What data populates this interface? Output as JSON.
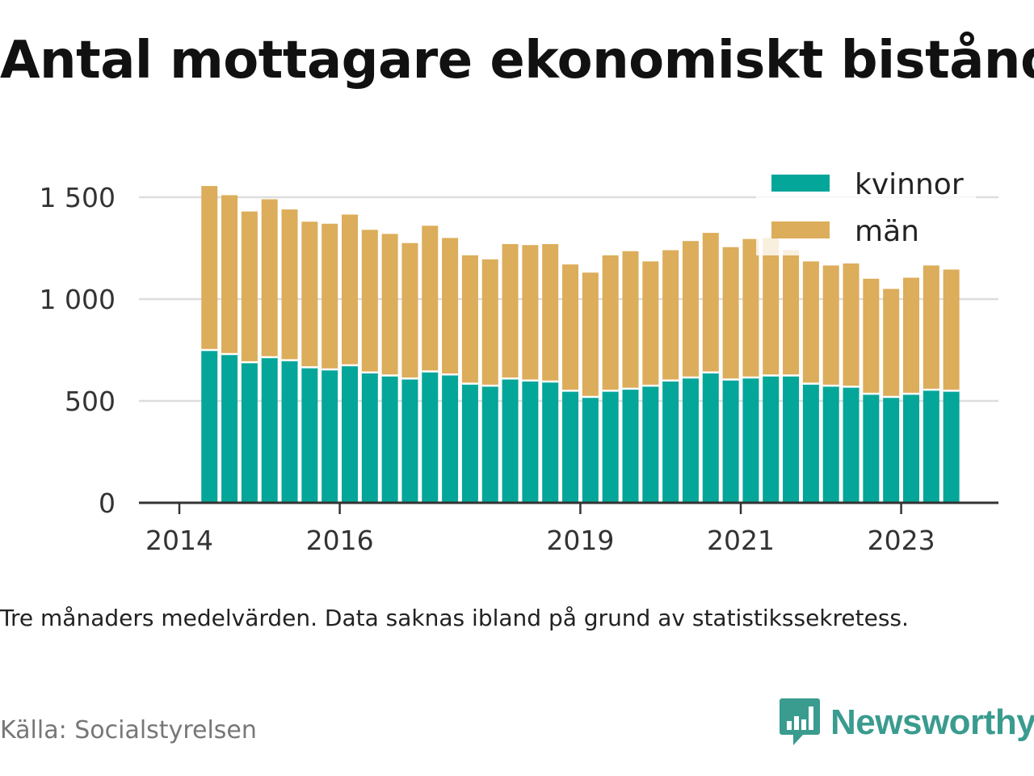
{
  "title": "Antal mottagare ekonomiskt bistånd",
  "note": "Tre månaders medelvärden. Data saknas ibland på grund av statistikssekretess.",
  "source": "Källa: Socialstyrelsen",
  "brand": {
    "name": "Newsworthy",
    "icon": "newsworthy-logo-icon",
    "color": "#3a9b8f"
  },
  "colors": {
    "kvinnor": "#04a699",
    "man": "#dcad5a",
    "grid": "#dddddd",
    "axis": "#333333"
  },
  "chart_data": {
    "type": "bar",
    "stacked": true,
    "title": "Antal mottagare ekonomiskt bistånd",
    "xlabel": "",
    "ylabel": "",
    "ylim": [
      0,
      1750
    ],
    "yticks": [
      0,
      500,
      1000,
      1500
    ],
    "ytick_labels": [
      "0",
      "500",
      "1 000",
      "1 500"
    ],
    "xlim": [
      2014.0,
      2024.6
    ],
    "xticks": [
      2014,
      2016,
      2019,
      2021,
      2023
    ],
    "xtick_labels": [
      "2014",
      "2016",
      "2019",
      "2021",
      "2023"
    ],
    "grid": true,
    "legend_position": "top-right",
    "x": [
      2014.375,
      2014.625,
      2014.875,
      2015.125,
      2015.375,
      2015.625,
      2015.875,
      2016.125,
      2016.375,
      2016.625,
      2016.875,
      2017.125,
      2017.375,
      2017.625,
      2017.875,
      2018.125,
      2018.375,
      2018.625,
      2018.875,
      2019.125,
      2019.375,
      2019.625,
      2019.875,
      2020.125,
      2020.375,
      2020.625,
      2020.875,
      2021.125,
      2021.375,
      2021.625,
      2021.875,
      2022.125,
      2022.375,
      2022.625,
      2022.875,
      2023.125,
      2023.375,
      2023.625
    ],
    "series": [
      {
        "name": "kvinnor",
        "color": "#04a699",
        "values": [
          750,
          730,
          690,
          715,
          700,
          665,
          655,
          675,
          640,
          625,
          610,
          645,
          630,
          585,
          575,
          610,
          600,
          595,
          550,
          520,
          550,
          560,
          575,
          600,
          615,
          640,
          605,
          615,
          625,
          625,
          585,
          575,
          570,
          535,
          520,
          535,
          555,
          550
        ]
      },
      {
        "name": "män",
        "color": "#dcad5a",
        "values": [
          805,
          780,
          740,
          775,
          740,
          715,
          715,
          740,
          700,
          695,
          665,
          715,
          670,
          630,
          620,
          660,
          665,
          675,
          620,
          610,
          665,
          675,
          610,
          640,
          670,
          685,
          650,
          680,
          675,
          615,
          600,
          590,
          605,
          565,
          530,
          570,
          610,
          595
        ]
      }
    ]
  }
}
